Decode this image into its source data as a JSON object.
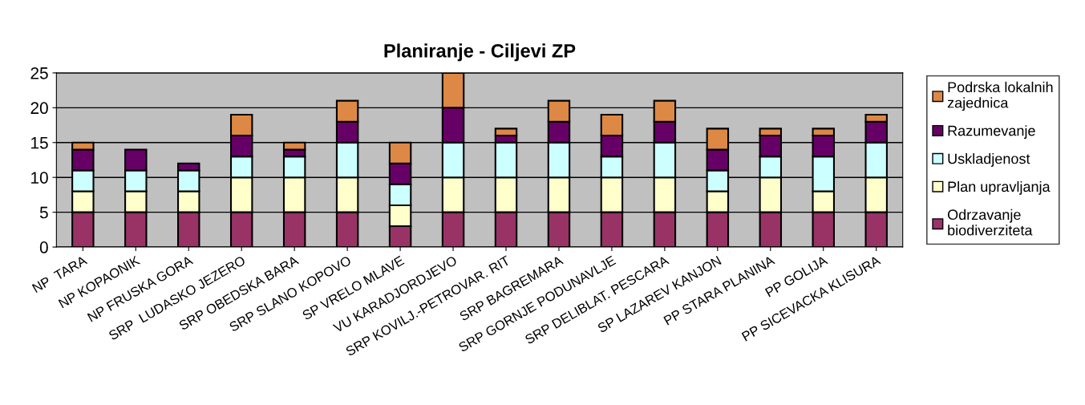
{
  "chart_data": {
    "type": "bar",
    "stacked": true,
    "title": "Planiranje - Ciljevi ZP",
    "categories": [
      "NP  TARA",
      "NP KOPAONIK",
      "NP FRUSKA GORA",
      "SRP  LUDASKO JEZERO",
      "SRP OBEDSKA BARA",
      "SRP SLANO KOPOVO",
      "SP VRELO MLAVE",
      "VU KARADJORDJEVO",
      "SRP KOVILJ.-PETROVAR. RIT",
      "SRP BAGREMARA",
      "SRP GORNJE PODUNAVLJE",
      "SRP DELIBLAT. PESCARA",
      "SP LAZAREV KANJON",
      "PP STARA PLANINA",
      "PP GOLIJA",
      "PP SICEVACKA KLISURA"
    ],
    "series": [
      {
        "name": "Odrzavanje\nbiodiverziteta",
        "color": "#993366",
        "values": [
          5,
          5,
          5,
          5,
          5,
          5,
          3,
          5,
          5,
          5,
          5,
          5,
          5,
          5,
          5,
          5
        ]
      },
      {
        "name": "Plan upravljanja",
        "color": "#ffffcc",
        "values": [
          3,
          3,
          3,
          5,
          5,
          5,
          3,
          5,
          5,
          5,
          5,
          5,
          3,
          5,
          3,
          5
        ]
      },
      {
        "name": "Uskladjenost",
        "color": "#ccffff",
        "values": [
          3,
          3,
          3,
          3,
          3,
          5,
          3,
          5,
          5,
          5,
          3,
          5,
          3,
          3,
          5,
          5
        ]
      },
      {
        "name": "Razumevanje",
        "color": "#660066",
        "values": [
          3,
          3,
          1,
          3,
          1,
          3,
          3,
          5,
          1,
          3,
          3,
          3,
          3,
          3,
          3,
          3
        ]
      },
      {
        "name": "Podrska lokalnih\nzajednica",
        "color": "#dd8844",
        "values": [
          1,
          0,
          0,
          3,
          1,
          3,
          3,
          5,
          1,
          3,
          3,
          3,
          3,
          1,
          1,
          1
        ]
      }
    ],
    "ylim": [
      0,
      25
    ],
    "yticks": [
      0,
      5,
      10,
      15,
      20,
      25
    ],
    "grid": "y",
    "legend": "right"
  }
}
